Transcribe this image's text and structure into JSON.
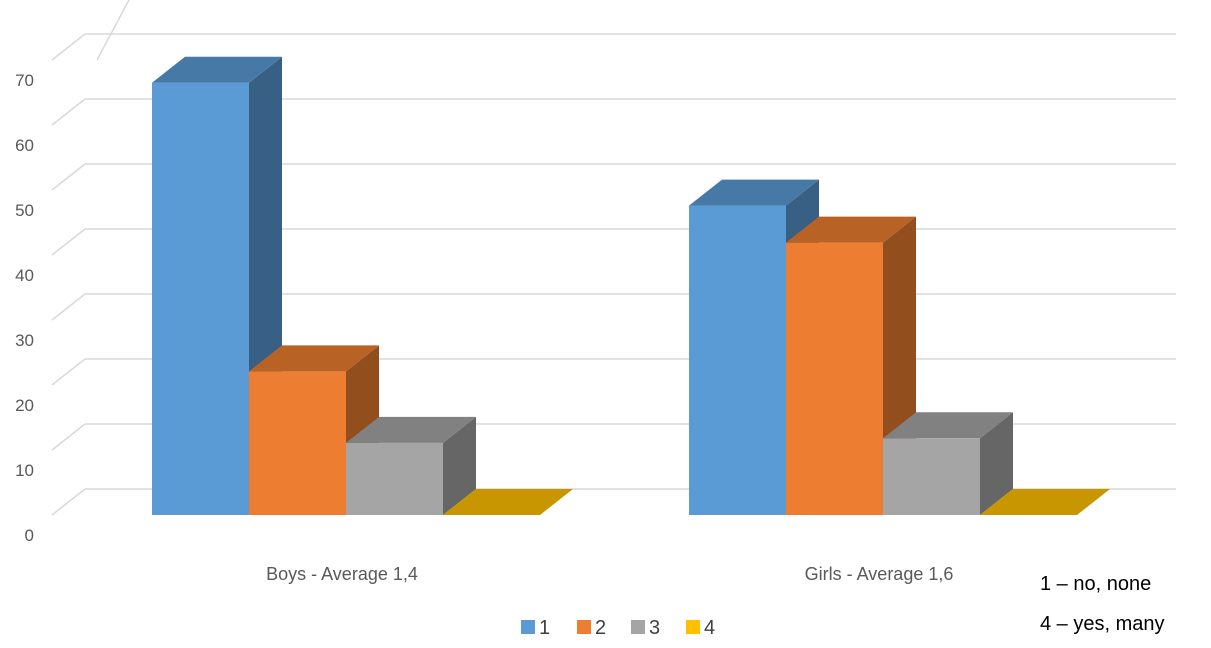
{
  "chart_data": {
    "type": "bar",
    "categories": [
      "Boys - Average 1,4",
      "Girls - Average 1,6"
    ],
    "series": [
      {
        "name": "1",
        "values": [
          66.5,
          47.6
        ],
        "color": "#5B9BD5"
      },
      {
        "name": "2",
        "values": [
          22.1,
          41.9
        ],
        "color": "#ED7D31"
      },
      {
        "name": "3",
        "values": [
          11.1,
          11.8
        ],
        "color": "#A5A5A5"
      },
      {
        "name": "4",
        "values": [
          0,
          0
        ],
        "color": "#FFC000"
      }
    ],
    "ylim": [
      0,
      70
    ],
    "yticks": [
      0,
      10,
      20,
      30,
      40,
      50,
      60,
      70
    ],
    "grid": true,
    "legend_position": "bottom",
    "style": "3d-clustered-column"
  },
  "annotation": {
    "lines": [
      "1 – no, none",
      "4 – yes, many"
    ]
  }
}
